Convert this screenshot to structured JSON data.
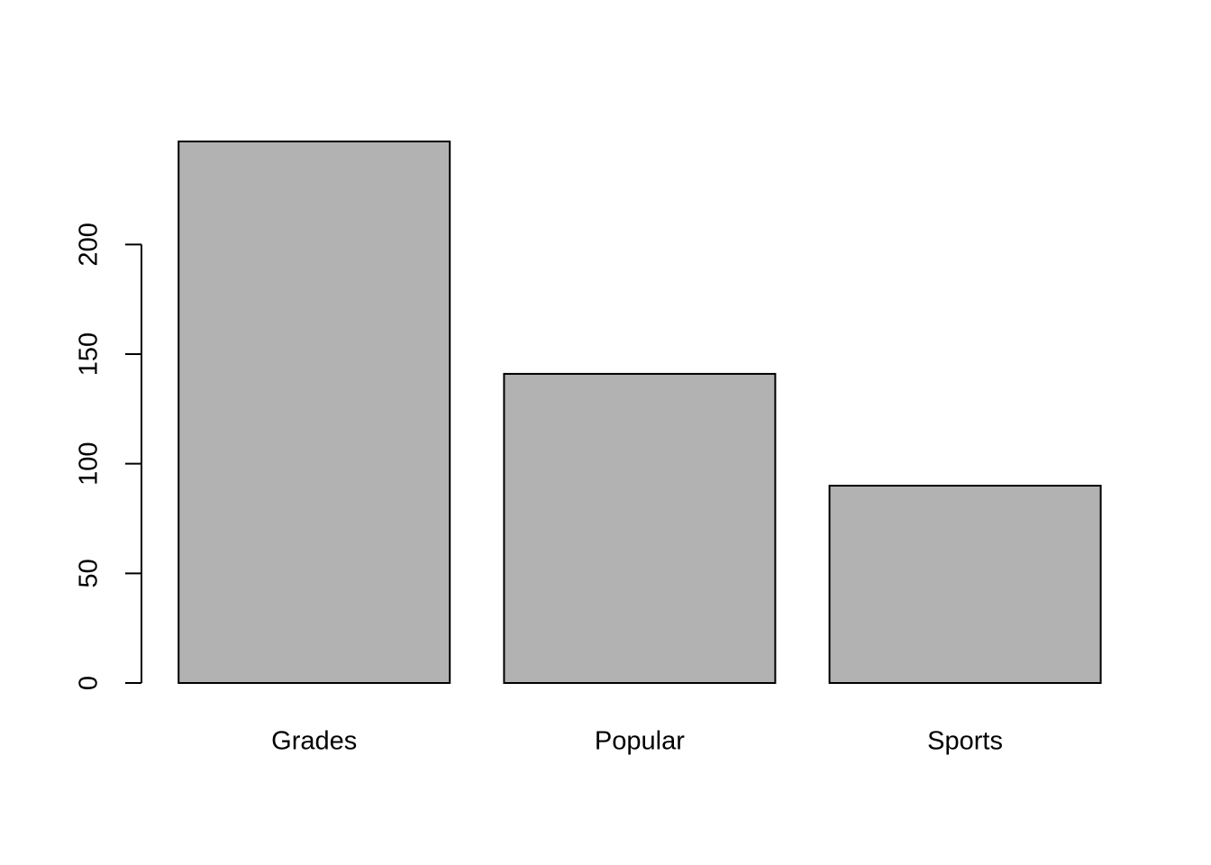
{
  "chart_data": {
    "type": "bar",
    "categories": [
      "Grades",
      "Popular",
      "Sports"
    ],
    "values": [
      247,
      141,
      90
    ],
    "color": "#b2b2b2",
    "ylim": [
      0,
      247
    ],
    "yticks": [
      0,
      50,
      100,
      150,
      200
    ],
    "grid": false
  }
}
